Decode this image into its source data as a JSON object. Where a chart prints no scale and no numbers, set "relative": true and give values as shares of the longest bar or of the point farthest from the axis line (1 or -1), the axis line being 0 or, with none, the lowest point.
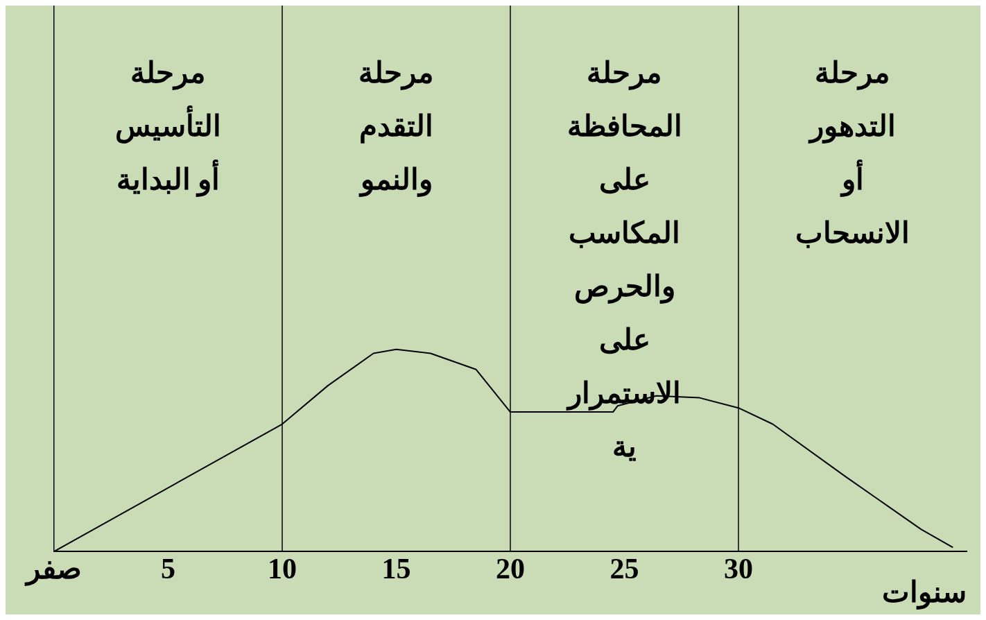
{
  "chart_data": {
    "type": "line",
    "relative": true,
    "xlabel": "سنوات",
    "xlim": [
      0,
      40
    ],
    "xticks": [
      {
        "value": 0,
        "label": "صفر"
      },
      5,
      10,
      15,
      20,
      25,
      30
    ],
    "grid": false,
    "legend": false,
    "marker": "none",
    "series": [
      {
        "color": "#000000",
        "x": [
          0,
          10,
          12,
          14,
          15,
          16.5,
          18.5,
          20,
          20.2,
          24.5,
          24.7,
          26.4,
          28.3,
          30,
          31.5,
          34.7,
          38,
          39.4
        ],
        "values": [
          0,
          0.63,
          0.82,
          0.98,
          1,
          0.98,
          0.9,
          0.69,
          0.69,
          0.69,
          0.72,
          0.77,
          0.76,
          0.71,
          0.63,
          0.37,
          0.11,
          0.02
        ]
      }
    ],
    "ref_lines": [
      {
        "axis": "x",
        "value": 10
      },
      {
        "axis": "x",
        "value": 20
      },
      {
        "axis": "x",
        "value": 30
      }
    ],
    "annotations": [
      "مرحلة\nالتأسيس\nأو البداية",
      "مرحلة\nالتقدم\nوالنمو",
      "مرحلة\nالمحافظة\nعلى\nالمكاسب\nوالحرص\nعلى\nالاستمرار\nية",
      "مرحلة\nالتدهور\nأو\nالانسحاب"
    ]
  }
}
